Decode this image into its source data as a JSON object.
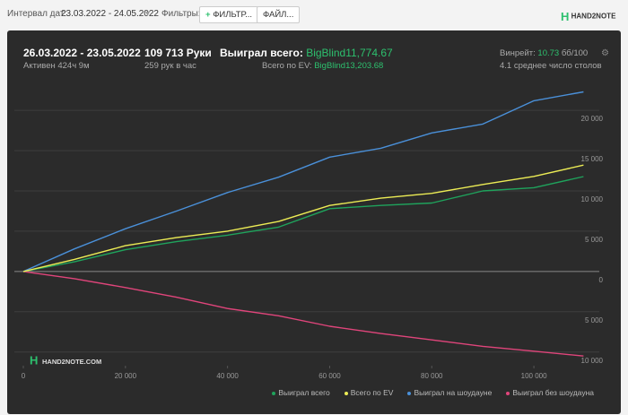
{
  "toolbar": {
    "date_label": "Интервал дат:",
    "date_range": "23.03.2022 - 24.05.2022",
    "filters_label": "Фильтры:",
    "filter_button": "ФИЛЬТР...",
    "file_button": "ФАЙЛ...",
    "logo": "HAND2NOTE"
  },
  "summary": {
    "period": "26.03.2022 - 23.05.2022",
    "active": "Активен 424ч 9м",
    "hands": "109 713 Руки",
    "hands_per_hour": "259 рук в час",
    "won_label": "Выиграл всего:",
    "won_value": "BigBlind11,774.67",
    "ev_label": "Всего по EV:",
    "ev_value": "BigBlind13,203.68",
    "winrate_label": "Винрейт:",
    "winrate_value": "10.73",
    "winrate_unit": "бб/100",
    "tables": "4.1 среднее число столов"
  },
  "watermark": "HAND2NOTE.COM",
  "chart_data": {
    "type": "line",
    "x": [
      0,
      10000,
      20000,
      30000,
      40000,
      50000,
      60000,
      70000,
      80000,
      90000,
      100000,
      109713
    ],
    "series": [
      {
        "name": "Выиграл всего",
        "color": "#1fa35c",
        "values": [
          0,
          1200,
          2700,
          3700,
          4500,
          5500,
          7800,
          8200,
          8500,
          10000,
          10400,
          11774.67
        ]
      },
      {
        "name": "Всего по EV",
        "color": "#ecec55",
        "values": [
          0,
          1500,
          3200,
          4200,
          5000,
          6200,
          8200,
          9100,
          9700,
          10800,
          11800,
          13203.68
        ]
      },
      {
        "name": "Выиграл на шоудауне",
        "color": "#4a90d9",
        "values": [
          0,
          2800,
          5300,
          7500,
          9800,
          11700,
          14200,
          15300,
          17200,
          18300,
          21200,
          22300
        ]
      },
      {
        "name": "Выиграл без шоудауна",
        "color": "#e0457b",
        "values": [
          0,
          -900,
          -2000,
          -3200,
          -4600,
          -5500,
          -6800,
          -7700,
          -8500,
          -9300,
          -9900,
          -10500
        ]
      }
    ],
    "xlim": [
      0,
      110000
    ],
    "xticks": [
      0,
      {
        "value": 20000,
        "label": "20 000"
      },
      {
        "value": 40000,
        "label": "40 000"
      },
      {
        "value": 60000,
        "label": "60 000"
      },
      {
        "value": 80000,
        "label": "80 000"
      },
      {
        "value": 100000,
        "label": "100 000"
      }
    ],
    "ylim": [
      -11700,
      24800
    ],
    "yticks": [
      {
        "value": 20000,
        "label": "20 000"
      },
      {
        "value": 15000,
        "label": "15 000"
      },
      {
        "value": 10000,
        "label": "10 000"
      },
      {
        "value": 5000,
        "label": "5 000"
      },
      0,
      {
        "value": -5000,
        "label": "5 000"
      },
      {
        "value": -10000,
        "label": "10 000"
      }
    ],
    "grid": true
  }
}
